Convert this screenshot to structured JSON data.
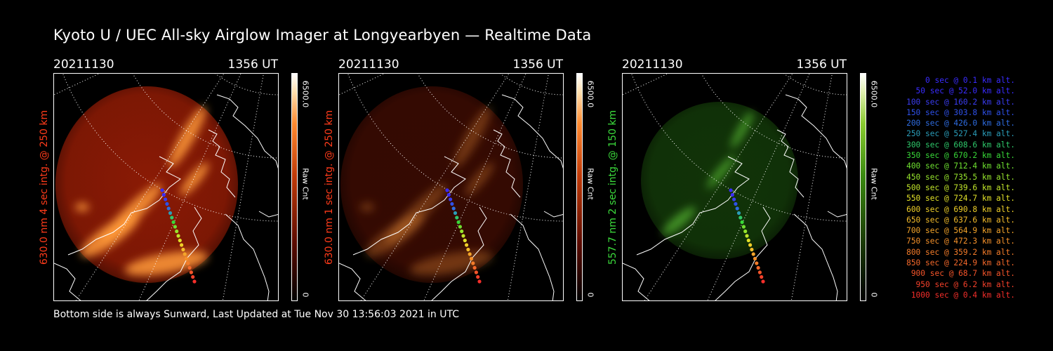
{
  "title": "Kyoto U / UEC All-sky Airglow Imager at Longyearbyen — Realtime Data",
  "footer": "Bottom side is always Sunward, Last Updated at Tue Nov 30 13:56:03 2021 in UTC",
  "panels": [
    {
      "date": "20211130",
      "time": "1356 UT",
      "ylabel": "630.0 nm 4 sec intg. @ 250 km",
      "label_color": "#ff3b1a",
      "cbar_max": "6500.0",
      "cbar_unit": "Raw Cnt",
      "cbar_min": "0",
      "palette": "red",
      "brightness": 1.0
    },
    {
      "date": "20211130",
      "time": "1356 UT",
      "ylabel": "630.0 nm 1 sec intg. @ 250 km",
      "label_color": "#ff3b1a",
      "cbar_max": "6500.0",
      "cbar_unit": "Raw Cnt",
      "cbar_min": "0",
      "palette": "red",
      "brightness": 0.35
    },
    {
      "date": "20211130",
      "time": "1356 UT",
      "ylabel": "557.7 nm 2 sec intg. @ 150 km",
      "label_color": "#3cdc3c",
      "cbar_max": "6500.0",
      "cbar_unit": "Raw Cnt",
      "cbar_min": "0",
      "palette": "green",
      "brightness": 0.55
    }
  ],
  "legend": [
    {
      "text": "0 sec @   0.1 km alt.",
      "color": "#3a2cff"
    },
    {
      "text": "50 sec @  52.0 km alt.",
      "color": "#3a2cff"
    },
    {
      "text": "100 sec @ 160.2 km alt.",
      "color": "#3a3cf0"
    },
    {
      "text": "150 sec @ 303.8 km alt.",
      "color": "#2e50e8"
    },
    {
      "text": "200 sec @ 426.0 km alt.",
      "color": "#2e6ce0"
    },
    {
      "text": "250 sec @ 527.4 km alt.",
      "color": "#2a9cb8"
    },
    {
      "text": "300 sec @ 608.6 km alt.",
      "color": "#2ec86a"
    },
    {
      "text": "350 sec @ 670.2 km alt.",
      "color": "#38d838"
    },
    {
      "text": "400 sec @ 712.4 km alt.",
      "color": "#6ee030"
    },
    {
      "text": "450 sec @ 735.5 km alt.",
      "color": "#96e42c"
    },
    {
      "text": "500 sec @ 739.6 km alt.",
      "color": "#c0e42a"
    },
    {
      "text": "550 sec @ 724.7 km alt.",
      "color": "#e0e028"
    },
    {
      "text": "600 sec @ 690.8 km alt.",
      "color": "#f0d028"
    },
    {
      "text": "650 sec @ 637.6 km alt.",
      "color": "#f4bc2a"
    },
    {
      "text": "700 sec @ 564.9 km alt.",
      "color": "#f4a42a"
    },
    {
      "text": "750 sec @ 472.3 km alt.",
      "color": "#f4902a"
    },
    {
      "text": "800 sec @ 359.2 km alt.",
      "color": "#f47c2a"
    },
    {
      "text": "850 sec @ 224.9 km alt.",
      "color": "#f4682a"
    },
    {
      "text": "900 sec @  68.7 km alt.",
      "color": "#f4542a"
    },
    {
      "text": "950 sec @   6.2 km alt.",
      "color": "#f4402a"
    },
    {
      "text": "1000 sec @   0.4 km alt.",
      "color": "#f42e2a"
    }
  ]
}
